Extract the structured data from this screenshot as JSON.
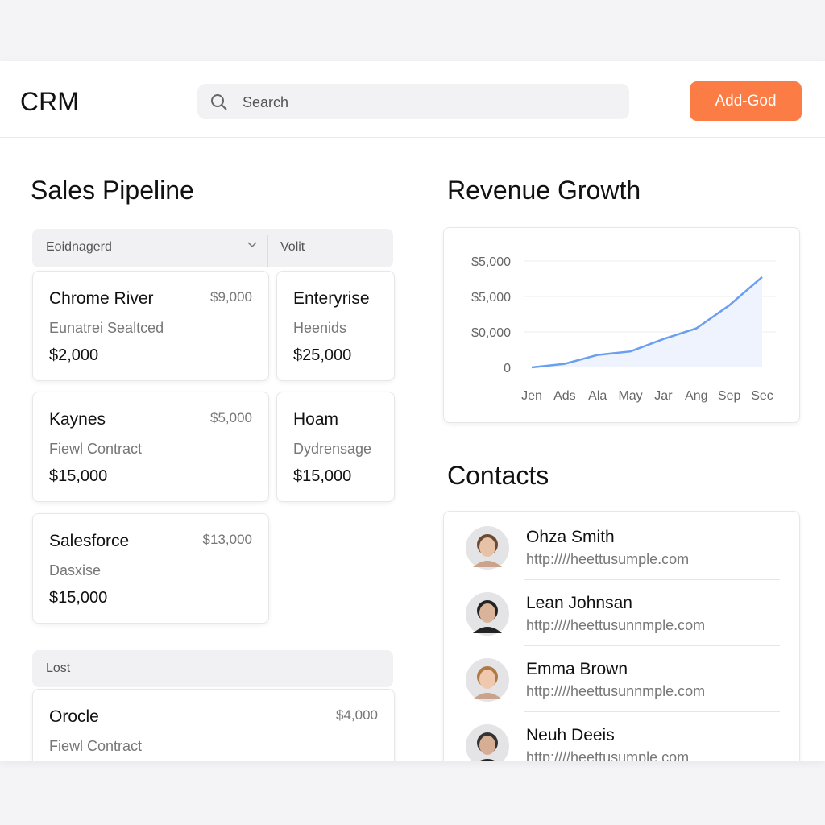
{
  "header": {
    "title": "CRM",
    "search_placeholder": "Search",
    "button": "Add-God"
  },
  "pipeline": {
    "title": "Sales Pipeline",
    "filter": "Eoidnagerd",
    "column": "Volit",
    "cards": [
      {
        "name": "Chrome River",
        "amount": "$9,000",
        "type": "Eunatrei Sealtced",
        "value": "$2,000"
      },
      {
        "name": "Kaynes",
        "amount": "$5,000",
        "type": "Fiewl Contract",
        "value": "$15,000"
      },
      {
        "name": "Salesforce",
        "amount": "$13,000",
        "type": "Dasxise",
        "value": "$15,000"
      },
      {
        "name": "Enteryrise",
        "type": "Heenids",
        "value": "$25,000"
      },
      {
        "name": "Hoam",
        "type": "Dydrensage",
        "value": "$15,000"
      }
    ],
    "lost": {
      "label": "Lost",
      "cards": [
        {
          "name": "Orocle",
          "amount": "$4,000",
          "type": "Fiewl Contract"
        }
      ]
    }
  },
  "revenue": {
    "title": "Revenue Growth",
    "chart": {
      "type": "line",
      "categories": [
        "Jen",
        "Ads",
        "Ala",
        "May",
        "Jar",
        "Ang",
        "Sep",
        "Sec"
      ],
      "values": [
        0,
        0.1,
        0.35,
        0.45,
        0.8,
        1.1,
        1.75,
        2.55
      ],
      "color": "#6a9ef0",
      "ylim": [
        0,
        3
      ],
      "yticks": [
        0,
        {
          "value": 1,
          "label": "$0,000"
        },
        {
          "value": 2,
          "label": "$5,000"
        },
        {
          "value": 3,
          "label": "$5,000"
        }
      ],
      "grid": true
    }
  },
  "contacts": {
    "title": "Contacts",
    "items": [
      {
        "name": "Ohza Smith",
        "url": "http:////heettusumple.com"
      },
      {
        "name": "Lean Johnsan",
        "url": "http:////heettusunnmple.com"
      },
      {
        "name": "Emma Brown",
        "url": "http:////heettusunnmple.com"
      },
      {
        "name": "Neuh Deeis",
        "url": "http:////heettusumple.com"
      }
    ]
  }
}
